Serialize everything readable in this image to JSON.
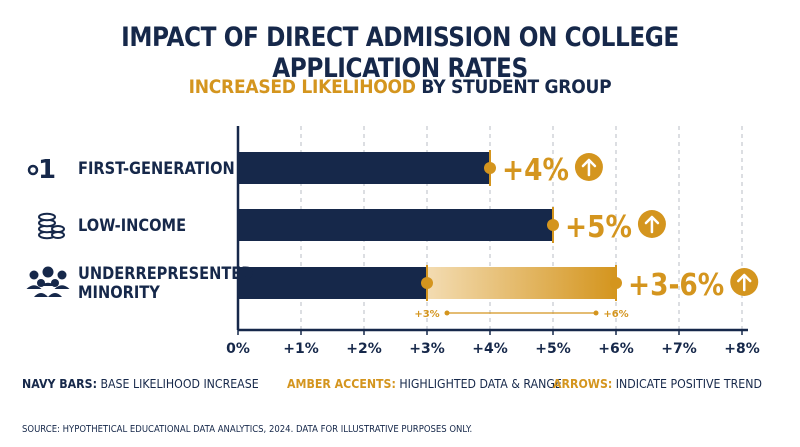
{
  "title": "IMPACT OF DIRECT ADMISSION ON COLLEGE APPLICATION RATES",
  "subtitle_highlight": "INCREASED LIKELIHOOD",
  "subtitle_rest": " BY STUDENT GROUP",
  "colors": {
    "navy": "#16284a",
    "amber": "#d4951e",
    "amber_light": "#f3dcb2",
    "grid": "#b8bcc4"
  },
  "chart_data": {
    "type": "bar",
    "orientation": "horizontal",
    "categories": [
      "FIRST-GENERATION",
      "LOW-INCOME",
      "UNDERREPRESENTED MINORITY"
    ],
    "category_icons": [
      "number-one-icon",
      "coin-stack-icon",
      "people-group-icon"
    ],
    "series": [
      {
        "values": [
          4,
          5,
          3
        ]
      },
      {
        "values": [
          null,
          null,
          6
        ],
        "range_low": [
          null,
          null,
          3
        ]
      }
    ],
    "data_labels": [
      "+4%",
      "+5%",
      "+3-6%"
    ],
    "range_annotation": {
      "low_label": "+3%",
      "high_label": "+6%",
      "low": 3,
      "high": 6,
      "category": "UNDERREPRESENTED MINORITY"
    },
    "x_ticks": [
      0,
      1,
      2,
      3,
      4,
      5,
      6,
      7,
      8
    ],
    "x_tick_labels": [
      "0%",
      "+1%",
      "+2%",
      "+3%",
      "+4%",
      "+5%",
      "+6%",
      "+7%",
      "+8%"
    ],
    "xlim": [
      0,
      8
    ],
    "grid": "vertical dashed",
    "arrow_icons": "up-arrow-circle-icon"
  },
  "legend": [
    {
      "key": "NAVY BARS:",
      "text": " BASE LIKELIHOOD INCREASE",
      "key_color": "navy"
    },
    {
      "key": "AMBER ACCENTS:",
      "text": " HIGHLIGHTED DATA & RANGE",
      "key_color": "amber"
    },
    {
      "key": "ARROWS:",
      "text": " INDICATE POSITIVE TREND",
      "key_color": "amber"
    }
  ],
  "source": "SOURCE: HYPOTHETICAL EDUCATIONAL DATA ANALYTICS, 2024. DATA FOR ILLUSTRATIVE PURPOSES ONLY."
}
